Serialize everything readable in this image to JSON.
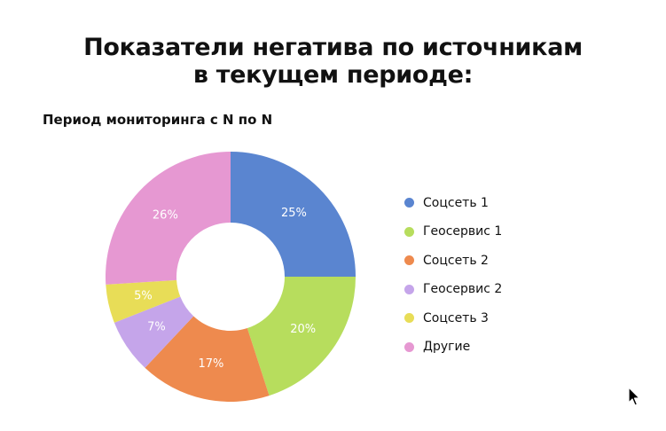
{
  "title": {
    "line1": "Показатели негатива по источникам",
    "line2": "в текущем периоде:"
  },
  "chart_data": {
    "type": "pie",
    "title": "Показатели негатива по источникам в текущем периоде:",
    "subtitle": "Период мониторинга с N по N",
    "categories": [
      "Соцсеть 1",
      "Геосервис 1",
      "Соцсеть 2",
      "Геосервис 2",
      "Соцсеть 3",
      "Другие"
    ],
    "values": [
      25,
      20,
      17,
      7,
      5,
      26
    ],
    "labels": [
      "25%",
      "20%",
      "17%",
      "7%",
      "5%",
      "26%"
    ],
    "colors": [
      "#5a85d0",
      "#b7dd5d",
      "#ee8a4e",
      "#c5a5ea",
      "#e8dd57",
      "#e698d2"
    ],
    "donut": true,
    "legend_position": "right"
  },
  "cursor_icon": "mouse-pointer-icon"
}
